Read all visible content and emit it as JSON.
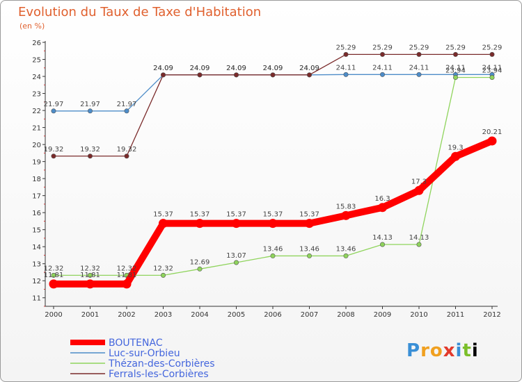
{
  "title": "Evolution du Taux de Taxe d'Habitation",
  "subtitle": "(en %)",
  "logo_text": "Proxiti",
  "chart_data": {
    "type": "line",
    "title": "Evolution du Taux de Taxe d'Habitation",
    "subtitle": "(en %)",
    "xlabel": "",
    "ylabel": "",
    "x": [
      "2000",
      "2001",
      "2002",
      "2003",
      "2004",
      "2005",
      "2006",
      "2007",
      "2008",
      "2009",
      "2010",
      "2011",
      "2012"
    ],
    "yticks": [
      11,
      12,
      13,
      14,
      15,
      16,
      17,
      18,
      19,
      20,
      21,
      22,
      23,
      24,
      25,
      26
    ],
    "ylim": [
      10.5,
      26
    ],
    "grid": false,
    "legend_position": "bottom-left",
    "series": [
      {
        "name": "BOUTENAC",
        "color": "#ff0000",
        "values": [
          11.81,
          11.81,
          11.81,
          15.37,
          15.37,
          15.37,
          15.37,
          15.37,
          15.83,
          16.3,
          17.3,
          19.3,
          20.21
        ],
        "labels": [
          "11.81",
          "11.81",
          "11.81",
          "15.37",
          "15.37",
          "15.37",
          "15.37",
          "15.37",
          "15.83",
          "16.3",
          "17.3",
          "19.3",
          "20.21"
        ]
      },
      {
        "name": "Luc-sur-Orbieu",
        "color": "#4d8cc8",
        "values": [
          21.97,
          21.97,
          21.97,
          24.09,
          24.09,
          24.09,
          24.09,
          24.09,
          24.11,
          24.11,
          24.11,
          24.11,
          24.11
        ],
        "labels": [
          "21.97",
          "21.97",
          "21.97",
          "24.09",
          "24.09",
          "24.09",
          "24.09",
          "24.09",
          "24.11",
          "24.11",
          "24.11",
          "24.11",
          "24.11"
        ]
      },
      {
        "name": "Thézan-des-Corbières",
        "color": "#8fd45c",
        "values": [
          12.32,
          12.32,
          12.32,
          12.32,
          12.69,
          13.07,
          13.46,
          13.46,
          13.46,
          14.13,
          14.13,
          23.94,
          23.94
        ],
        "labels": [
          "12.32",
          "12.32",
          "12.32",
          "12.32",
          "12.69",
          "13.07",
          "13.46",
          "13.46",
          "13.46",
          "14.13",
          "14.13",
          "23.94",
          "23.94"
        ]
      },
      {
        "name": "Ferrals-les-Corbières",
        "color": "#7a2a2a",
        "values": [
          19.32,
          19.32,
          19.32,
          24.09,
          24.09,
          24.09,
          24.09,
          24.09,
          25.29,
          25.29,
          25.29,
          25.29,
          25.29
        ],
        "labels": [
          "19.32",
          "19.32",
          "19.32",
          "24.09",
          "24.09",
          "24.09",
          "24.09",
          "24.09",
          "25.29",
          "25.29",
          "25.29",
          "25.29",
          "25.29"
        ]
      }
    ],
    "legend": [
      {
        "name": "BOUTENAC",
        "color": "#ff0000",
        "text_color": "#4466dd"
      },
      {
        "name": "Luc-sur-Orbieu",
        "color": "#4d8cc8",
        "text_color": "#4466dd"
      },
      {
        "name": "Thézan-des-Corbières",
        "color": "#8fd45c",
        "text_color": "#4466dd"
      },
      {
        "name": "Ferrals-les-Corbières",
        "color": "#7a2a2a",
        "text_color": "#4466dd"
      }
    ]
  }
}
